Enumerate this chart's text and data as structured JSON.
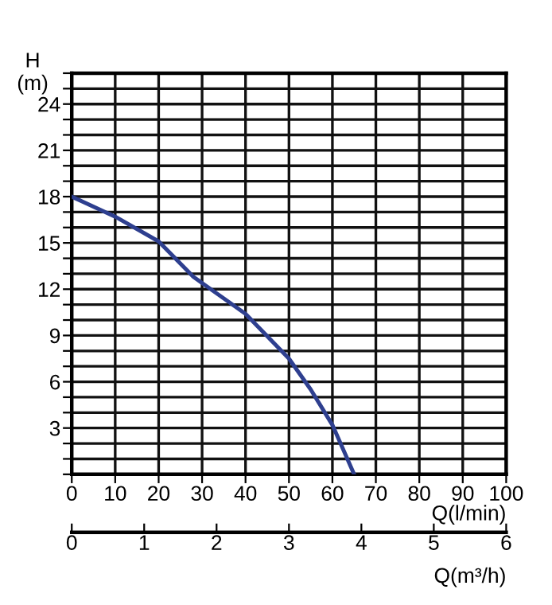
{
  "chart_data": {
    "type": "line",
    "ylabel": "H\n(m)",
    "xlabel": "Q(l/min)",
    "x2label": "Q(m³/h)",
    "x": [
      0,
      10,
      20,
      28,
      40,
      50,
      55,
      60,
      65
    ],
    "series": [
      {
        "color": "#2e3f8f",
        "values": [
          18,
          16.7,
          15.1,
          12.8,
          10.4,
          7.5,
          5.5,
          3.2,
          0
        ]
      }
    ],
    "xlim": [
      0,
      100
    ],
    "xticks": [
      0,
      10,
      20,
      30,
      40,
      50,
      60,
      70,
      80,
      90,
      100
    ],
    "ylim": [
      0,
      26
    ],
    "yticks": [
      {
        "value": 0,
        "label": null
      },
      {
        "value": 1,
        "label": null
      },
      {
        "value": 2,
        "label": null
      },
      3,
      {
        "value": 4,
        "label": null
      },
      {
        "value": 5,
        "label": null
      },
      6,
      {
        "value": 7,
        "label": null
      },
      {
        "value": 8,
        "label": null
      },
      9,
      {
        "value": 10,
        "label": null
      },
      {
        "value": 11,
        "label": null
      },
      12,
      {
        "value": 13,
        "label": null
      },
      {
        "value": 14,
        "label": null
      },
      15,
      {
        "value": 16,
        "label": null
      },
      {
        "value": 17,
        "label": null
      },
      18,
      {
        "value": 19,
        "label": null
      },
      {
        "value": 20,
        "label": null
      },
      21,
      {
        "value": 22,
        "label": null
      },
      {
        "value": 23,
        "label": null
      },
      24,
      {
        "value": 25,
        "label": null
      },
      {
        "value": 26,
        "label": null
      }
    ],
    "x2lim": [
      0,
      6
    ],
    "x2ticks": [
      0,
      1,
      2,
      3,
      4,
      5,
      6
    ],
    "grid": true,
    "marker": "none",
    "line_style": "solid",
    "legend": false
  }
}
